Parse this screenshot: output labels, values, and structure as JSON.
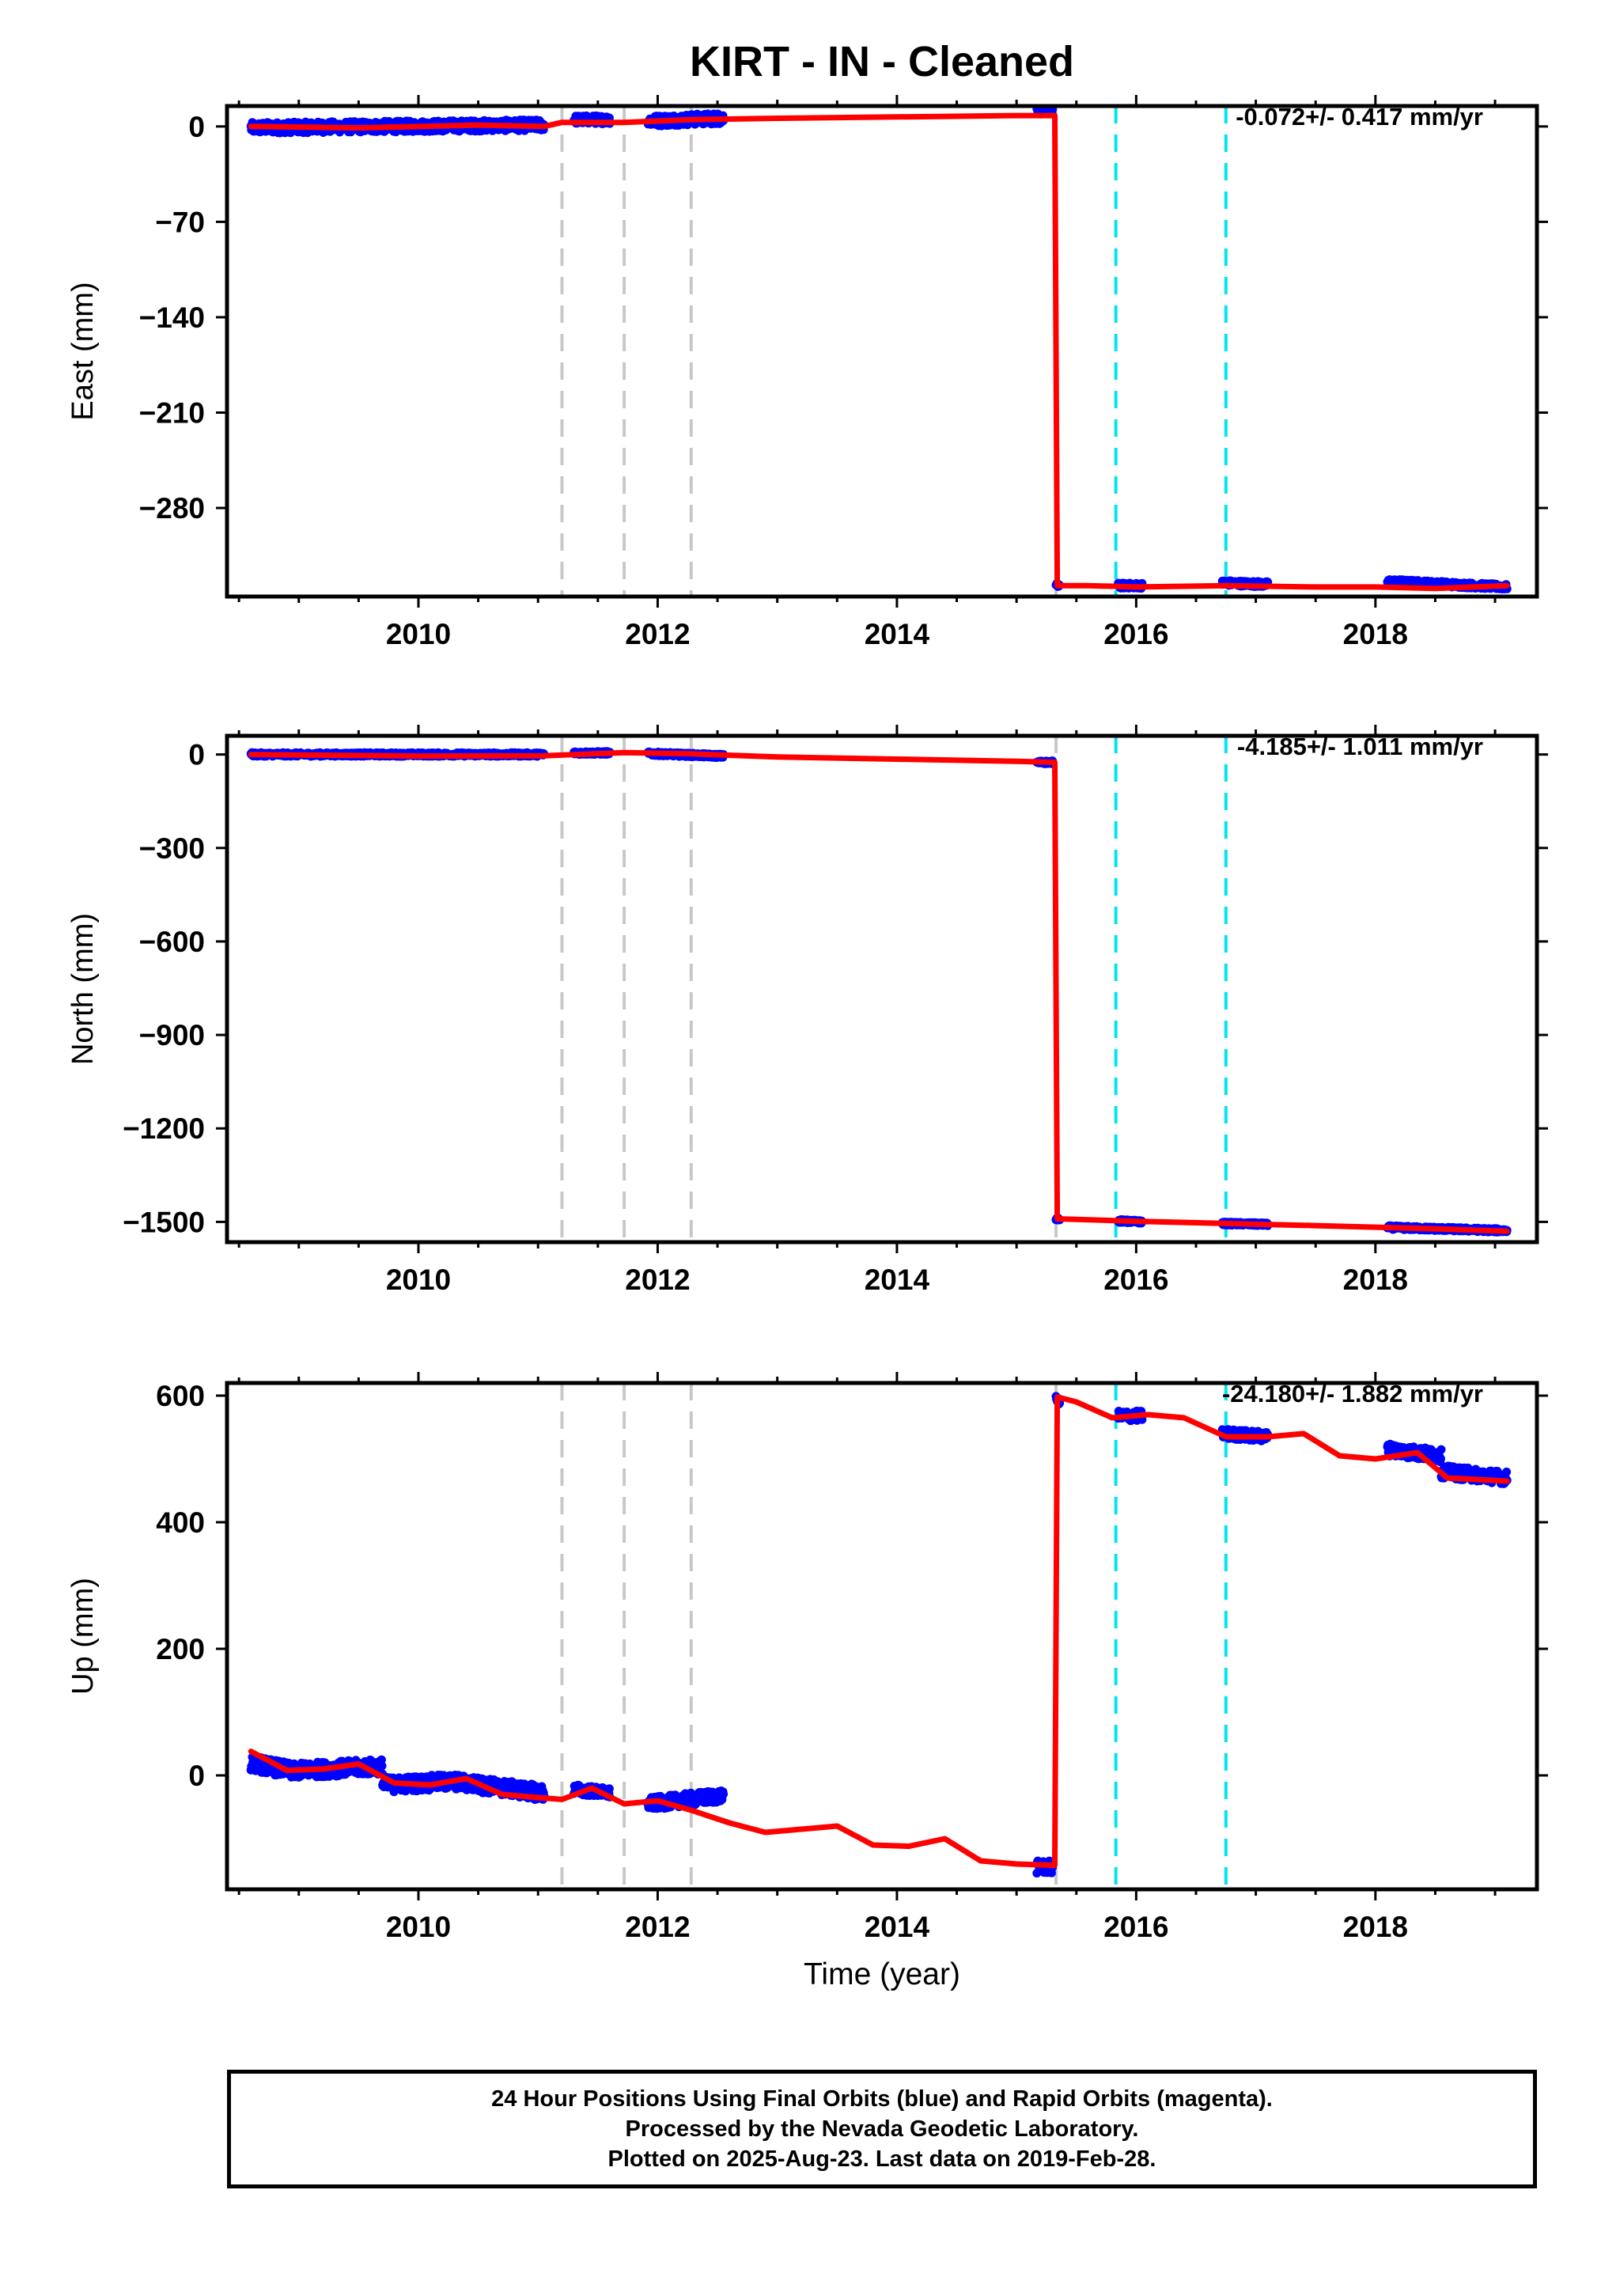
{
  "title": "KIRT  - IN - Cleaned",
  "x_axis_label": "Time (year)",
  "footer": {
    "lines": [
      "24 Hour Positions Using Final Orbits (blue) and Rapid Orbits (magenta).",
      "Processed by the Nevada Geodetic Laboratory.",
      "Plotted on 2025-Aug-23. Last data on 2019-Feb-28."
    ]
  },
  "chart_data": [
    {
      "type": "scatter",
      "component": "East",
      "ylabel": "East (mm)",
      "rate_label": "-0.072+/- 0.417 mm/yr",
      "xlim": [
        2008.4,
        2019.35
      ],
      "ylim": [
        -345,
        15
      ],
      "xticks": [
        2010,
        2012,
        2014,
        2016,
        2018
      ],
      "yticks": [
        0,
        -70,
        -140,
        -210,
        -280
      ],
      "colors": {
        "observations": "#0000ff",
        "model": "#ff0000",
        "equipment_change": "#c8c8c8",
        "earthquake": "#00e5ee"
      },
      "gray_dashed_events": [
        2011.2,
        2011.72,
        2012.28,
        2015.33
      ],
      "cyan_dashed_events": [
        2015.83,
        2016.75
      ],
      "observation_segments": [
        {
          "x": [
            2008.6,
            2011.05
          ],
          "y": [
            -1,
            1
          ],
          "spread": 4
        },
        {
          "x": [
            2011.3,
            2011.6
          ],
          "y": [
            5,
            5
          ],
          "spread": 3
        },
        {
          "x": [
            2011.92,
            2012.55
          ],
          "y": [
            4,
            6
          ],
          "spread": 4
        },
        {
          "x": [
            2015.17,
            2015.3
          ],
          "y": [
            12,
            12
          ],
          "spread": 3
        },
        {
          "x": [
            2015.33,
            2015.36
          ],
          "y": [
            -337,
            -337
          ],
          "spread": 2
        },
        {
          "x": [
            2015.85,
            2016.05
          ],
          "y": [
            -337,
            -337
          ],
          "spread": 2
        },
        {
          "x": [
            2016.72,
            2017.1
          ],
          "y": [
            -335,
            -336
          ],
          "spread": 2
        },
        {
          "x": [
            2018.1,
            2019.1
          ],
          "y": [
            -334,
            -338
          ],
          "spread": 2
        }
      ],
      "model_line": {
        "x": [
          2008.6,
          2009.5,
          2010.5,
          2011.05,
          2011.2,
          2011.72,
          2012.28,
          2013.0,
          2014.0,
          2015.0,
          2015.32,
          2015.34,
          2015.6,
          2016.0,
          2016.75,
          2017.5,
          2018.0,
          2018.5,
          2019.1
        ],
        "y": [
          0,
          -1,
          1,
          0,
          3,
          3,
          5,
          6,
          7,
          8,
          8,
          -337,
          -337,
          -338,
          -337,
          -338,
          -338,
          -339,
          -337
        ]
      }
    },
    {
      "type": "scatter",
      "component": "North",
      "ylabel": "North (mm)",
      "rate_label": "-4.185+/- 1.011 mm/yr",
      "xlim": [
        2008.4,
        2019.35
      ],
      "ylim": [
        -1565,
        60
      ],
      "xticks": [
        2010,
        2012,
        2014,
        2016,
        2018
      ],
      "yticks": [
        0,
        -300,
        -600,
        -900,
        -1200,
        -1500
      ],
      "colors": {
        "observations": "#0000ff",
        "model": "#ff0000",
        "equipment_change": "#c8c8c8",
        "earthquake": "#00e5ee"
      },
      "gray_dashed_events": [
        2011.2,
        2011.72,
        2012.28,
        2015.33
      ],
      "cyan_dashed_events": [
        2015.83,
        2016.75
      ],
      "observation_segments": [
        {
          "x": [
            2008.6,
            2011.05
          ],
          "y": [
            0,
            0
          ],
          "spread": 6
        },
        {
          "x": [
            2011.3,
            2011.6
          ],
          "y": [
            5,
            5
          ],
          "spread": 5
        },
        {
          "x": [
            2011.92,
            2012.55
          ],
          "y": [
            3,
            -5
          ],
          "spread": 6
        },
        {
          "x": [
            2015.17,
            2015.3
          ],
          "y": [
            -25,
            -25
          ],
          "spread": 5
        },
        {
          "x": [
            2015.33,
            2015.36
          ],
          "y": [
            -1490,
            -1490
          ],
          "spread": 4
        },
        {
          "x": [
            2015.85,
            2016.05
          ],
          "y": [
            -1497,
            -1500
          ],
          "spread": 5
        },
        {
          "x": [
            2016.72,
            2017.1
          ],
          "y": [
            -1505,
            -1508
          ],
          "spread": 5
        },
        {
          "x": [
            2018.1,
            2019.1
          ],
          "y": [
            -1518,
            -1528
          ],
          "spread": 6
        }
      ],
      "model_line": {
        "x": [
          2008.6,
          2010.0,
          2011.05,
          2011.72,
          2012.28,
          2013.0,
          2014.0,
          2015.0,
          2015.32,
          2015.34,
          2016.0,
          2016.75,
          2017.5,
          2018.0,
          2018.5,
          2019.1
        ],
        "y": [
          0,
          -5,
          -4,
          6,
          2,
          -8,
          -15,
          -22,
          -25,
          -1490,
          -1498,
          -1505,
          -1512,
          -1517,
          -1522,
          -1530
        ]
      }
    },
    {
      "type": "scatter",
      "component": "Up",
      "ylabel": "Up (mm)",
      "rate_label": "-24.180+/- 1.882 mm/yr",
      "xlim": [
        2008.4,
        2019.35
      ],
      "ylim": [
        -180,
        620
      ],
      "xticks": [
        2010,
        2012,
        2014,
        2016,
        2018
      ],
      "yticks": [
        600,
        400,
        200,
        0
      ],
      "colors": {
        "observations": "#0000ff",
        "model": "#ff0000",
        "equipment_change": "#c8c8c8",
        "earthquake": "#00e5ee"
      },
      "gray_dashed_events": [
        2011.2,
        2011.72,
        2012.28,
        2015.33
      ],
      "cyan_dashed_events": [
        2015.83,
        2016.75
      ],
      "observation_segments": [
        {
          "x": [
            2008.6,
            2009.0
          ],
          "y": [
            20,
            5
          ],
          "spread": 12
        },
        {
          "x": [
            2009.0,
            2009.7
          ],
          "y": [
            8,
            14
          ],
          "spread": 12
        },
        {
          "x": [
            2009.7,
            2010.3
          ],
          "y": [
            -15,
            -10
          ],
          "spread": 12
        },
        {
          "x": [
            2010.3,
            2011.05
          ],
          "y": [
            -10,
            -28
          ],
          "spread": 12
        },
        {
          "x": [
            2011.3,
            2011.6
          ],
          "y": [
            -22,
            -28
          ],
          "spread": 8
        },
        {
          "x": [
            2011.92,
            2012.55
          ],
          "y": [
            -45,
            -32
          ],
          "spread": 10
        },
        {
          "x": [
            2015.17,
            2015.3
          ],
          "y": [
            -145,
            -145
          ],
          "spread": 10
        },
        {
          "x": [
            2015.33,
            2015.36
          ],
          "y": [
            595,
            590
          ],
          "spread": 4
        },
        {
          "x": [
            2015.85,
            2016.05
          ],
          "y": [
            568,
            568
          ],
          "spread": 8
        },
        {
          "x": [
            2016.72,
            2017.1
          ],
          "y": [
            540,
            535
          ],
          "spread": 8
        },
        {
          "x": [
            2018.1,
            2018.55
          ],
          "y": [
            515,
            505
          ],
          "spread": 10
        },
        {
          "x": [
            2018.55,
            2019.1
          ],
          "y": [
            480,
            470
          ],
          "spread": 10
        }
      ],
      "model_line": {
        "x": [
          2008.6,
          2008.9,
          2009.2,
          2009.5,
          2009.8,
          2010.1,
          2010.4,
          2010.7,
          2011.0,
          2011.2,
          2011.45,
          2011.72,
          2012.0,
          2012.28,
          2012.6,
          2012.9,
          2013.2,
          2013.5,
          2013.8,
          2014.1,
          2014.4,
          2014.7,
          2015.0,
          2015.32,
          2015.34,
          2015.5,
          2015.8,
          2016.1,
          2016.4,
          2016.75,
          2017.1,
          2017.4,
          2017.7,
          2018.0,
          2018.35,
          2018.6,
          2019.1
        ],
        "y": [
          38,
          8,
          10,
          18,
          -12,
          -15,
          -5,
          -30,
          -35,
          -38,
          -20,
          -45,
          -40,
          -55,
          -75,
          -90,
          -85,
          -80,
          -110,
          -112,
          -100,
          -135,
          -140,
          -142,
          598,
          590,
          565,
          570,
          565,
          535,
          535,
          540,
          505,
          500,
          510,
          470,
          465
        ]
      }
    }
  ]
}
